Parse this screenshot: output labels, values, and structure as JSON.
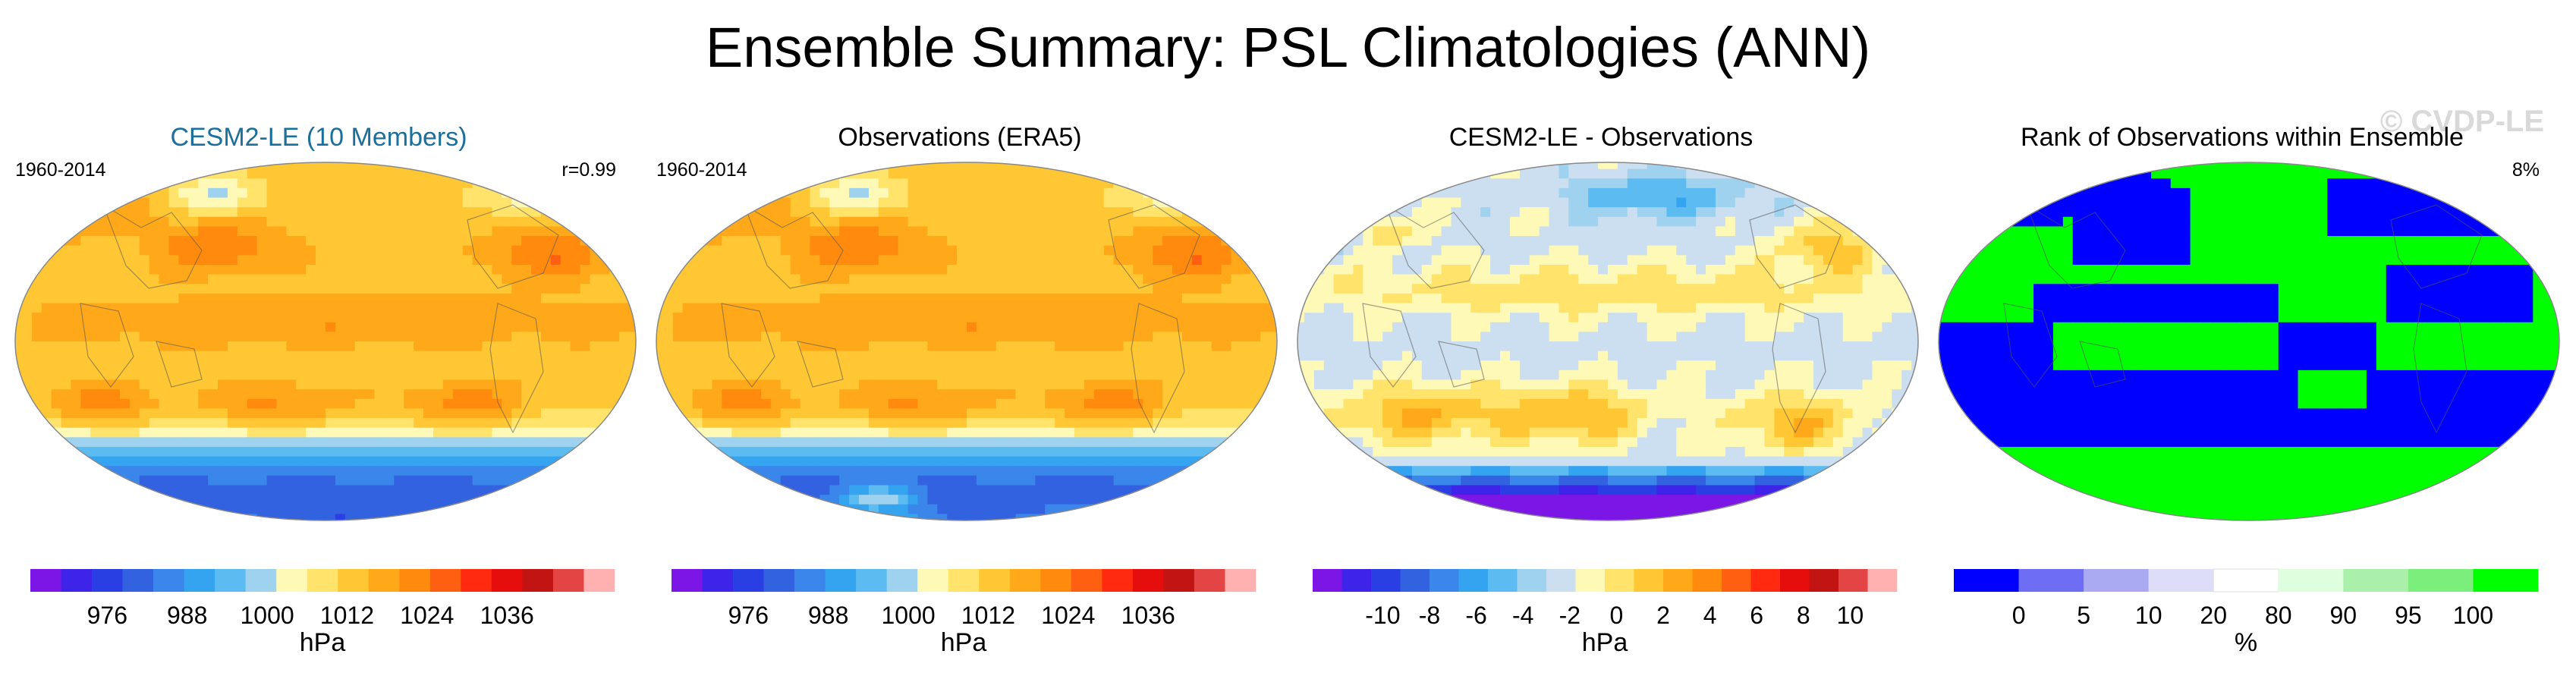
{
  "page": {
    "title": "Ensemble Summary: PSL Climatologies (ANN)",
    "watermark": "© CVDP-LE"
  },
  "colors": {
    "psl_scale": [
      "#7b16e6",
      "#3d24e8",
      "#2a3fe3",
      "#3262e0",
      "#3a86ea",
      "#35a4f0",
      "#5cbcf2",
      "#9fd2ee",
      "#fff9b8",
      "#ffe36a",
      "#ffc733",
      "#ffa91a",
      "#ff8a0e",
      "#ff5f10",
      "#ff2a10",
      "#e60d0d",
      "#c31414",
      "#e34545",
      "#ffb0b0"
    ],
    "diff_scale": [
      "#7b16e6",
      "#3d24e8",
      "#2a3fe3",
      "#3262e0",
      "#3a86ea",
      "#35a4f0",
      "#5cbcf2",
      "#9fd2ee",
      "#ccdff0",
      "#fff9b8",
      "#ffe36a",
      "#ffc733",
      "#ffa91a",
      "#ff8a0e",
      "#ff5f10",
      "#ff2a10",
      "#e60d0d",
      "#c31414",
      "#e34545",
      "#ffb0b0"
    ],
    "rank_scale": [
      "#0000ff",
      "#6e6ef5",
      "#aaaaf2",
      "#ddddf8",
      "#ffffff",
      "#ddffdd",
      "#aaf0aa",
      "#7cee7c",
      "#00ff00"
    ]
  },
  "chart_data": [
    {
      "type": "heatmap",
      "title": "CESM2-LE (10 Members)",
      "period": "1960-2014",
      "stat": "r=0.99",
      "units": "hPa",
      "colorbar_ticks": [
        "976",
        "988",
        "1000",
        "1012",
        "1024",
        "1036"
      ],
      "colorbar_range": [
        970,
        1046
      ],
      "pattern": "psl_model",
      "features": {
        "subtropical_highs_hPa": 1024,
        "equatorial_trough_hPa": 1010,
        "southern_ocean_low_hPa": 982,
        "aleutian_low_hPa": 1003
      }
    },
    {
      "type": "heatmap",
      "title": "Observations (ERA5)",
      "period": "1960-2014",
      "stat": "",
      "units": "hPa",
      "colorbar_ticks": [
        "976",
        "988",
        "1000",
        "1012",
        "1024",
        "1036"
      ],
      "colorbar_range": [
        970,
        1046
      ],
      "pattern": "psl_obs",
      "features": {
        "subtropical_highs_hPa": 1023,
        "equatorial_trough_hPa": 1010,
        "southern_ocean_low_hPa": 984,
        "aleutian_low_hPa": 1004
      }
    },
    {
      "type": "heatmap",
      "title": "CESM2-LE - Observations",
      "period": "",
      "stat": "",
      "units": "hPa",
      "colorbar_ticks": [
        "-10",
        "-8",
        "-6",
        "-4",
        "-2",
        "0",
        "2",
        "4",
        "6",
        "8",
        "10"
      ],
      "colorbar_range": [
        -10,
        10
      ],
      "pattern": "diff",
      "features": {
        "southern_midlatitude_bias_hPa": 3,
        "antarctic_bias_hPa": -10,
        "tropical_bias_hPa": -1
      }
    },
    {
      "type": "heatmap",
      "title": "Rank of Observations within Ensemble",
      "period": "",
      "stat": "8%",
      "units": "%",
      "colorbar_ticks": [
        "0",
        "5",
        "10",
        "20",
        "80",
        "90",
        "95",
        "100"
      ],
      "colorbar_range": [
        0,
        100
      ],
      "pattern": "rank",
      "features": {
        "low_rank_percent": 0,
        "high_rank_percent": 100
      }
    }
  ]
}
